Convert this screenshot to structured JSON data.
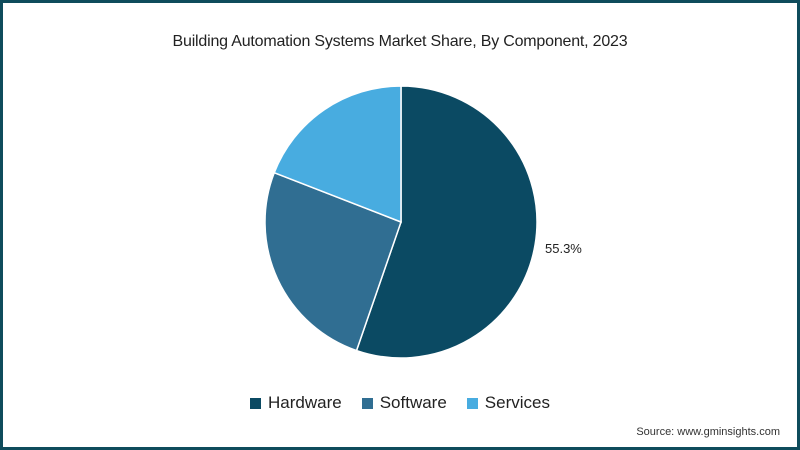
{
  "title": "Building Automation Systems Market Share, By Component, 2023",
  "source": "Source: www.gminsights.com",
  "colors": {
    "frame": "#0f4c5c",
    "hardware": "#0b4a63",
    "software": "#306e92",
    "services": "#48ace0"
  },
  "legend": [
    {
      "label": "Hardware",
      "color": "#0b4a63"
    },
    {
      "label": "Software",
      "color": "#306e92"
    },
    {
      "label": "Services",
      "color": "#48ace0"
    }
  ],
  "data_label": "55.3%",
  "chart_data": {
    "type": "pie",
    "title": "Building Automation Systems Market Share, By Component, 2023",
    "categories": [
      "Hardware",
      "Software",
      "Services"
    ],
    "values": [
      55.3,
      25.6,
      19.1
    ],
    "labeled_values": {
      "Hardware": "55.3%"
    },
    "start_angle": "12 o'clock, clockwise",
    "legend_position": "bottom",
    "source": "Source: www.gminsights.com"
  }
}
